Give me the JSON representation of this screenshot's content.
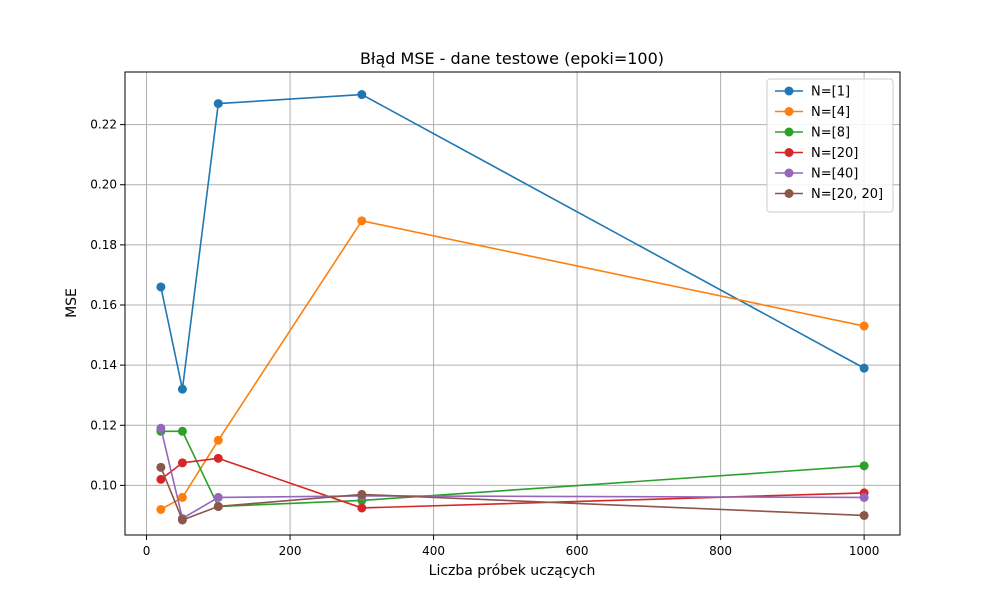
{
  "chart_data": {
    "type": "line",
    "title": "Błąd MSE - dane testowe (epoki=100)",
    "xlabel": "Liczba próbek uczących",
    "ylabel": "MSE",
    "xlim": [
      -30,
      1050
    ],
    "ylim": [
      0.0835,
      0.2375
    ],
    "xticks": [
      0,
      200,
      400,
      600,
      800,
      1000
    ],
    "xtick_labels": [
      "0",
      "200",
      "400",
      "600",
      "800",
      "1000"
    ],
    "yticks": [
      0.1,
      0.12,
      0.14,
      0.16,
      0.18,
      0.2,
      0.22
    ],
    "ytick_labels": [
      "0.10",
      "0.12",
      "0.14",
      "0.16",
      "0.18",
      "0.20",
      "0.22"
    ],
    "grid": true,
    "legend_position": "top-right",
    "x": [
      20,
      50,
      100,
      300,
      1000
    ],
    "series": [
      {
        "name": "N=[1]",
        "color": "#1f77b4",
        "values": [
          0.166,
          0.132,
          0.227,
          0.23,
          0.139
        ]
      },
      {
        "name": "N=[4]",
        "color": "#ff7f0e",
        "values": [
          0.092,
          0.096,
          0.115,
          0.188,
          0.153
        ]
      },
      {
        "name": "N=[8]",
        "color": "#2ca02c",
        "values": [
          0.118,
          0.118,
          0.093,
          0.095,
          0.1065
        ]
      },
      {
        "name": "N=[20]",
        "color": "#d62728",
        "values": [
          0.102,
          0.1075,
          0.109,
          0.0925,
          0.0975
        ]
      },
      {
        "name": "N=[40]",
        "color": "#9467bd",
        "values": [
          0.119,
          0.089,
          0.096,
          0.0965,
          0.096
        ]
      },
      {
        "name": "N=[20, 20]",
        "color": "#8c564b",
        "values": [
          0.106,
          0.0885,
          0.093,
          0.097,
          0.09
        ]
      }
    ]
  }
}
